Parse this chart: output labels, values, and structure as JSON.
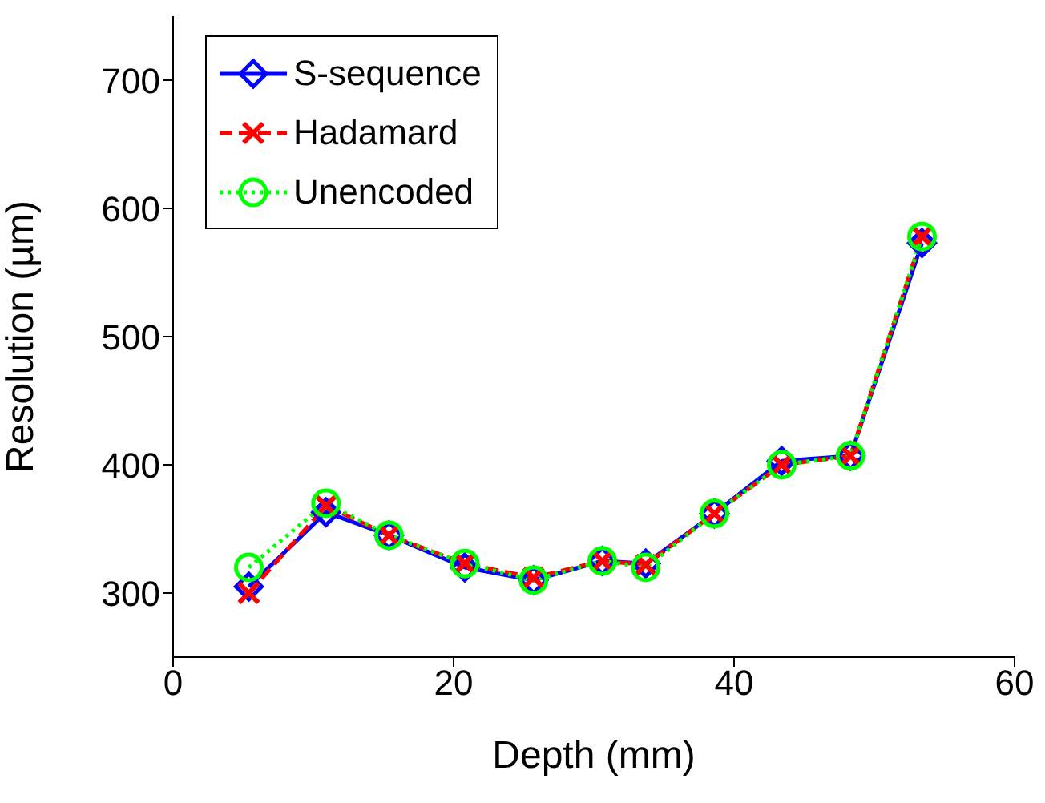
{
  "chart_data": {
    "type": "line",
    "xlabel": "Depth (mm)",
    "ylabel": "Resolution (µm)",
    "x": [
      5.4,
      10.9,
      15.4,
      20.8,
      25.7,
      30.6,
      33.7,
      38.6,
      43.4,
      48.3,
      53.4
    ],
    "series": [
      {
        "name": "S-sequence",
        "color": "#0000ff",
        "marker": "diamond",
        "line_style": "solid",
        "values": [
          305,
          363,
          345,
          320,
          310,
          325,
          323,
          362,
          403,
          407,
          573
        ]
      },
      {
        "name": "Hadamard",
        "color": "#ff0000",
        "marker": "cross",
        "line_style": "dashed",
        "values": [
          300,
          368,
          345,
          323,
          312,
          325,
          322,
          362,
          400,
          407,
          578
        ]
      },
      {
        "name": "Unencoded",
        "color": "#00ff00",
        "marker": "circle",
        "line_style": "dotted",
        "values": [
          320,
          370,
          345,
          323,
          310,
          325,
          320,
          362,
          400,
          407,
          578
        ]
      }
    ],
    "xlim": [
      0,
      60
    ],
    "xticks": [
      0,
      20,
      40,
      60
    ],
    "ylim": [
      250,
      750
    ],
    "yticks": [
      300,
      400,
      500,
      600,
      700
    ],
    "grid": false,
    "legend": "top left"
  }
}
